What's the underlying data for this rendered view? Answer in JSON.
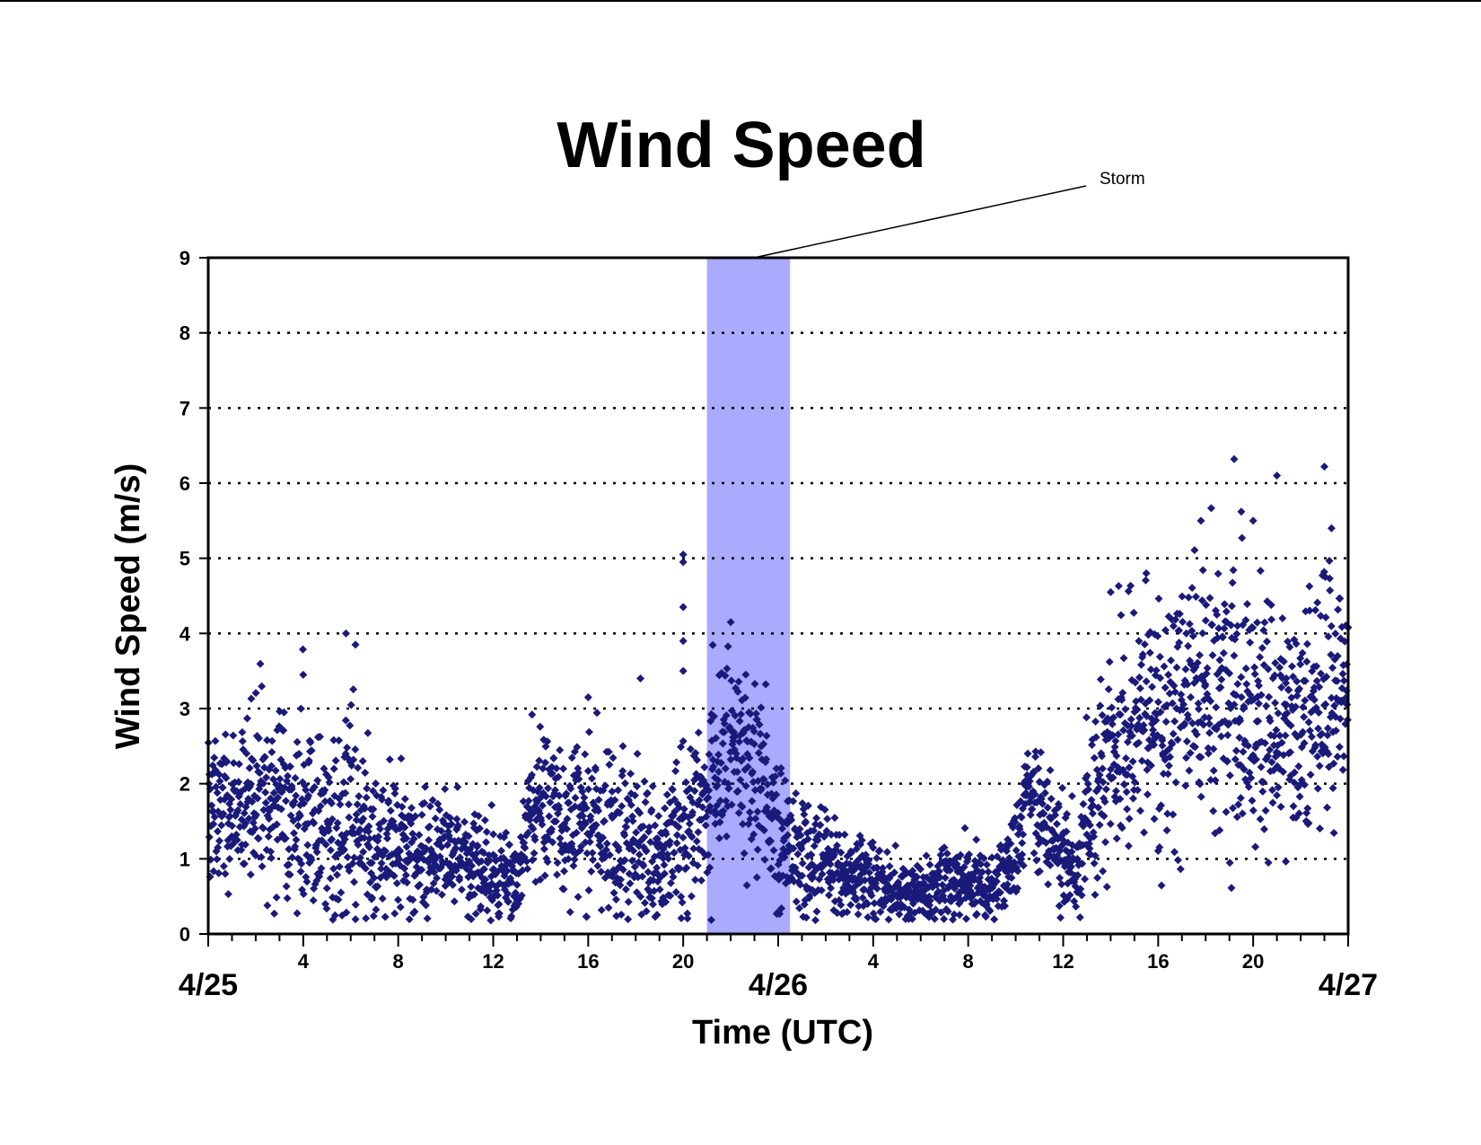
{
  "chart_data": {
    "type": "scatter",
    "title": "Wind Speed",
    "xlabel": "Time (UTC)",
    "ylabel": "Wind Speed (m/s)",
    "x_unit": "hours from 4/25 00:00 UTC",
    "xlim": [
      0,
      48
    ],
    "ylim": [
      0,
      9
    ],
    "yticks": [
      "0",
      "1",
      "2",
      "3",
      "4",
      "5",
      "6",
      "7",
      "8",
      "9"
    ],
    "xticks_hours": [
      {
        "hour": 4,
        "label": "4"
      },
      {
        "hour": 8,
        "label": "8"
      },
      {
        "hour": 12,
        "label": "12"
      },
      {
        "hour": 16,
        "label": "16"
      },
      {
        "hour": 20,
        "label": "20"
      },
      {
        "hour": 28,
        "label": "4"
      },
      {
        "hour": 32,
        "label": "8"
      },
      {
        "hour": 36,
        "label": "12"
      },
      {
        "hour": 40,
        "label": "16"
      },
      {
        "hour": 44,
        "label": "20"
      }
    ],
    "xticks_days": [
      {
        "hour": 0,
        "label": "4/25"
      },
      {
        "hour": 24,
        "label": "4/26"
      },
      {
        "hour": 48,
        "label": "4/27"
      }
    ],
    "grid": {
      "y": "dotted",
      "x": false
    },
    "marker_color": "#1a1a7a",
    "shaded_region": {
      "label": "Storm",
      "x_start": 21,
      "x_end": 24.5,
      "color": "#aaaaff"
    },
    "profile": [
      {
        "x": 0,
        "y": 1.6,
        "s": 0.5
      },
      {
        "x": 1,
        "y": 1.8,
        "s": 0.5
      },
      {
        "x": 2,
        "y": 1.8,
        "s": 0.55
      },
      {
        "x": 3,
        "y": 1.9,
        "s": 0.6
      },
      {
        "x": 4,
        "y": 1.7,
        "s": 0.6
      },
      {
        "x": 5,
        "y": 1.3,
        "s": 0.6
      },
      {
        "x": 6,
        "y": 1.6,
        "s": 0.7
      },
      {
        "x": 7,
        "y": 1.3,
        "s": 0.5
      },
      {
        "x": 8,
        "y": 1.2,
        "s": 0.45
      },
      {
        "x": 9,
        "y": 1.0,
        "s": 0.4
      },
      {
        "x": 10,
        "y": 1.1,
        "s": 0.35
      },
      {
        "x": 11,
        "y": 1.0,
        "s": 0.35
      },
      {
        "x": 12,
        "y": 0.8,
        "s": 0.3
      },
      {
        "x": 13,
        "y": 0.7,
        "s": 0.3
      },
      {
        "x": 13.5,
        "y": 1.5,
        "s": 0.5
      },
      {
        "x": 14,
        "y": 1.7,
        "s": 0.5
      },
      {
        "x": 15,
        "y": 1.6,
        "s": 0.55
      },
      {
        "x": 16,
        "y": 1.5,
        "s": 0.55
      },
      {
        "x": 17,
        "y": 1.3,
        "s": 0.55
      },
      {
        "x": 18,
        "y": 1.1,
        "s": 0.5
      },
      {
        "x": 19,
        "y": 1.1,
        "s": 0.5
      },
      {
        "x": 20,
        "y": 1.3,
        "s": 0.6
      },
      {
        "x": 21,
        "y": 2.0,
        "s": 0.7
      },
      {
        "x": 22,
        "y": 2.5,
        "s": 0.65
      },
      {
        "x": 23,
        "y": 2.3,
        "s": 0.6
      },
      {
        "x": 24,
        "y": 1.3,
        "s": 0.5
      },
      {
        "x": 25,
        "y": 1.0,
        "s": 0.4
      },
      {
        "x": 26,
        "y": 1.0,
        "s": 0.35
      },
      {
        "x": 27,
        "y": 0.8,
        "s": 0.3
      },
      {
        "x": 28,
        "y": 0.7,
        "s": 0.25
      },
      {
        "x": 29,
        "y": 0.6,
        "s": 0.22
      },
      {
        "x": 30,
        "y": 0.55,
        "s": 0.2
      },
      {
        "x": 31,
        "y": 0.65,
        "s": 0.25
      },
      {
        "x": 32,
        "y": 0.65,
        "s": 0.25
      },
      {
        "x": 33,
        "y": 0.6,
        "s": 0.2
      },
      {
        "x": 34,
        "y": 1.0,
        "s": 0.35
      },
      {
        "x": 34.5,
        "y": 2.0,
        "s": 0.3
      },
      {
        "x": 35,
        "y": 1.6,
        "s": 0.4
      },
      {
        "x": 36,
        "y": 1.1,
        "s": 0.4
      },
      {
        "x": 36.5,
        "y": 0.8,
        "s": 0.3
      },
      {
        "x": 37,
        "y": 1.6,
        "s": 0.5
      },
      {
        "x": 38,
        "y": 2.5,
        "s": 0.7
      },
      {
        "x": 39,
        "y": 2.6,
        "s": 0.75
      },
      {
        "x": 40,
        "y": 2.8,
        "s": 0.8
      },
      {
        "x": 41,
        "y": 3.0,
        "s": 0.85
      },
      {
        "x": 42,
        "y": 3.2,
        "s": 0.9
      },
      {
        "x": 43,
        "y": 3.3,
        "s": 0.9
      },
      {
        "x": 44,
        "y": 3.1,
        "s": 0.8
      },
      {
        "x": 45,
        "y": 2.9,
        "s": 0.8
      },
      {
        "x": 46,
        "y": 2.9,
        "s": 0.8
      },
      {
        "x": 47,
        "y": 3.3,
        "s": 0.8
      },
      {
        "x": 48,
        "y": 3.3,
        "s": 0.8
      }
    ],
    "notable_points": [
      {
        "x": 5.8,
        "y": 4.0
      },
      {
        "x": 6.2,
        "y": 3.85
      },
      {
        "x": 4.0,
        "y": 3.45
      },
      {
        "x": 20.0,
        "y": 5.05
      },
      {
        "x": 20.0,
        "y": 4.95
      },
      {
        "x": 20.0,
        "y": 4.35
      },
      {
        "x": 20.0,
        "y": 3.9
      },
      {
        "x": 20.0,
        "y": 3.5
      },
      {
        "x": 22.0,
        "y": 4.15
      },
      {
        "x": 18.2,
        "y": 3.4
      },
      {
        "x": 16.0,
        "y": 3.15
      },
      {
        "x": 43.2,
        "y": 6.32
      },
      {
        "x": 45.0,
        "y": 6.1
      },
      {
        "x": 47.0,
        "y": 6.22
      },
      {
        "x": 43.5,
        "y": 5.62
      },
      {
        "x": 44.0,
        "y": 5.5
      },
      {
        "x": 41.8,
        "y": 5.5
      },
      {
        "x": 47.3,
        "y": 5.4
      },
      {
        "x": 39.5,
        "y": 4.8
      },
      {
        "x": 38.0,
        "y": 4.55
      }
    ]
  }
}
